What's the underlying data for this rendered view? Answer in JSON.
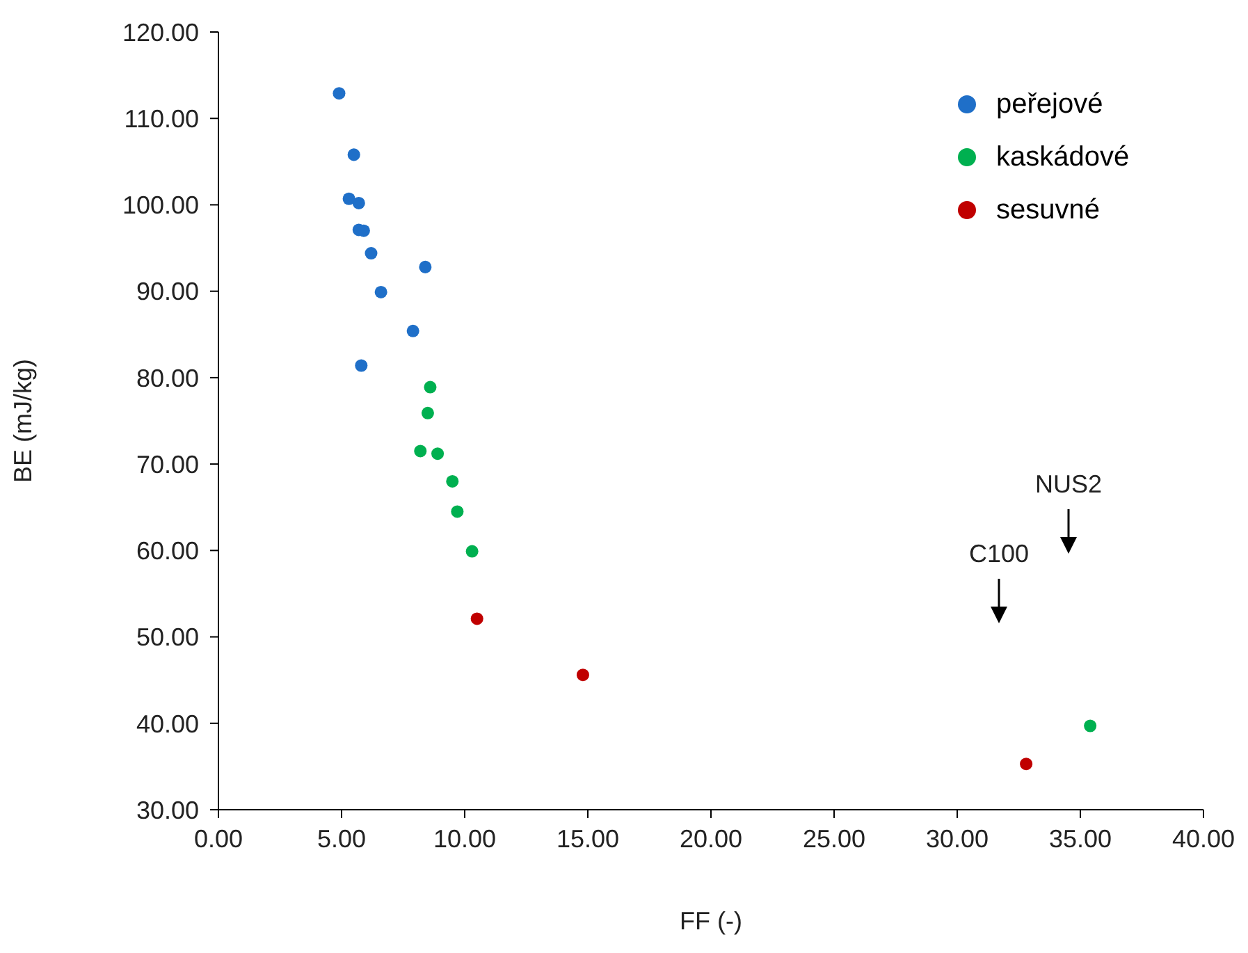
{
  "chart_data": {
    "type": "scatter",
    "xlabel": "FF (-)",
    "ylabel": "BE (mJ/kg)",
    "xlim": [
      0,
      40
    ],
    "xticks": [
      {
        "value": 0,
        "label": "0.00"
      },
      {
        "value": 5,
        "label": "5.00"
      },
      {
        "value": 10,
        "label": "10.00"
      },
      {
        "value": 15,
        "label": "15.00"
      },
      {
        "value": 20,
        "label": "20.00"
      },
      {
        "value": 25,
        "label": "25.00"
      },
      {
        "value": 30,
        "label": "30.00"
      },
      {
        "value": 35,
        "label": "35.00"
      },
      {
        "value": 40,
        "label": "40.00"
      }
    ],
    "ylim": [
      30,
      120
    ],
    "yticks": [
      {
        "value": 30,
        "label": "30.00"
      },
      {
        "value": 40,
        "label": "40.00"
      },
      {
        "value": 50,
        "label": "50.00"
      },
      {
        "value": 60,
        "label": "60.00"
      },
      {
        "value": 70,
        "label": "70.00"
      },
      {
        "value": 80,
        "label": "80.00"
      },
      {
        "value": 90,
        "label": "90.00"
      },
      {
        "value": 100,
        "label": "100.00"
      },
      {
        "value": 110,
        "label": "110.00"
      },
      {
        "value": 120,
        "label": "120.00"
      }
    ],
    "marker": "circle",
    "legend": "top right",
    "series": [
      {
        "name": "peřejové",
        "color": "#1f6fc8",
        "x": [
          4.9,
          5.5,
          5.3,
          5.7,
          5.7,
          5.9,
          6.2,
          8.4,
          6.6,
          7.9,
          5.8
        ],
        "values": [
          112.9,
          105.8,
          100.7,
          100.2,
          97.1,
          97.0,
          94.4,
          92.8,
          89.9,
          85.4,
          81.4
        ]
      },
      {
        "name": "kaskádové",
        "color": "#00b050",
        "x": [
          8.6,
          8.5,
          8.2,
          8.9,
          9.5,
          9.7,
          10.3,
          35.4
        ],
        "values": [
          78.9,
          75.9,
          71.5,
          71.2,
          68.0,
          64.5,
          59.9,
          39.7
        ]
      },
      {
        "name": "sesuvné",
        "color": "#c00000",
        "x": [
          10.5,
          14.8,
          32.8
        ],
        "values": [
          52.1,
          45.6,
          35.3
        ]
      }
    ],
    "annotations": [
      "C100",
      "NUS2"
    ]
  }
}
